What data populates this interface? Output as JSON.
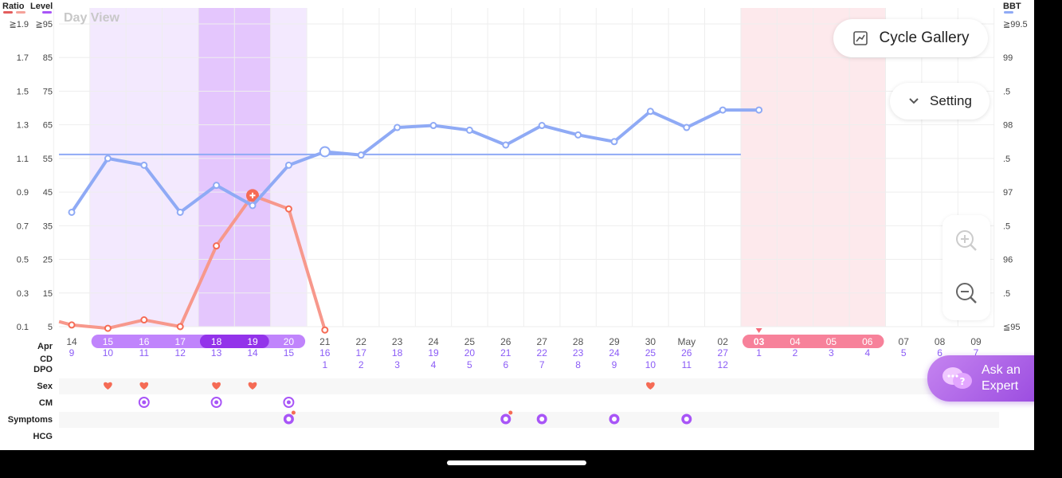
{
  "header": {
    "ratio_label": "Ratio",
    "level_label": "Level",
    "bbt_label": "BBT",
    "view_mode": "Day View",
    "ratio_color": "#e35d5d",
    "ratio_color_2": "#f5a29a",
    "level_color": "#a855f7",
    "bbt_color": "#8faaf5"
  },
  "buttons": {
    "cycle_gallery": "Cycle Gallery",
    "setting": "Setting",
    "ask_expert_line1": "Ask an",
    "ask_expert_line2": "Expert"
  },
  "chart_data": {
    "type": "line",
    "left_ratio_ticks": [
      "≧1.9",
      "1.7",
      "1.5",
      "1.3",
      "1.1",
      "0.9",
      "0.7",
      "0.5",
      "0.3",
      "0.1"
    ],
    "left_level_ticks": [
      "≧95",
      "85",
      "75",
      "65",
      "55",
      "45",
      "35",
      "25",
      "15",
      "5"
    ],
    "right_bbt_ticks": [
      "≧99.5",
      "99",
      ".5",
      "98",
      ".5",
      "97",
      ".5",
      "96",
      ".5",
      "≦95"
    ],
    "month_labels": [
      {
        "index": 0,
        "text": "Apr"
      },
      {
        "index": 17,
        "text": "May"
      }
    ],
    "dates": [
      "14",
      "15",
      "16",
      "17",
      "18",
      "19",
      "20",
      "21",
      "22",
      "23",
      "24",
      "25",
      "26",
      "27",
      "28",
      "29",
      "30",
      "May",
      "02",
      "03",
      "04",
      "05",
      "06",
      "07",
      "08",
      "09"
    ],
    "cycle_day": [
      "9",
      "10",
      "11",
      "12",
      "13",
      "14",
      "15",
      "16",
      "17",
      "18",
      "19",
      "20",
      "21",
      "22",
      "23",
      "24",
      "25",
      "26",
      "27",
      "1",
      "2",
      "3",
      "4",
      "5",
      "6",
      "7"
    ],
    "dpo": [
      "",
      "",
      "",
      "",
      "",
      "",
      "",
      "1",
      "2",
      "3",
      "4",
      "5",
      "6",
      "7",
      "8",
      "9",
      "10",
      "11",
      "12",
      "",
      "",
      "",
      "",
      "",
      "",
      ""
    ],
    "fertile_window": {
      "start_index": 1,
      "end_index": 6
    },
    "peak_window": {
      "start_index": 4,
      "end_index": 5
    },
    "period_window": {
      "start_index": 19,
      "end_index": 22
    },
    "today_index": 19,
    "bbt": {
      "name": "BBT",
      "values": [
        96.7,
        97.5,
        97.4,
        96.7,
        97.1,
        96.8,
        97.4,
        97.6,
        97.55,
        97.96,
        97.99,
        97.92,
        97.7,
        97.99,
        97.85,
        97.75,
        98.2,
        97.96,
        98.22,
        98.22,
        null,
        null,
        null,
        null,
        null,
        null
      ],
      "coverline": 97.56,
      "range": [
        95,
        99.5
      ]
    },
    "lh_level": {
      "values": [
        6.5,
        5.5,
        4.5,
        7,
        5,
        29,
        44,
        40,
        4,
        null,
        null,
        null,
        null,
        null,
        null,
        null,
        null,
        null,
        null,
        null,
        null,
        null,
        null,
        null,
        null,
        null
      ],
      "x_offset_index": [
        -0.35,
        0,
        1,
        2,
        3,
        4,
        5,
        6,
        7
      ],
      "range": [
        5,
        95
      ],
      "peak_index": 5
    },
    "rows": {
      "sex_label": "Sex",
      "sex_days": [
        1,
        2,
        4,
        5,
        16
      ],
      "cm_label": "CM",
      "cm_days": [
        2,
        4,
        6
      ],
      "symptoms_label": "Symptoms",
      "symptoms_days": [
        6,
        12,
        13,
        15,
        17
      ],
      "hcg_label": "HCG",
      "apr_label": "Apr",
      "cd_label": "CD",
      "dpo_label": "DPO"
    }
  },
  "icons": {
    "gallery": "chart-trend-icon",
    "setting": "chevron-down-icon",
    "zoom_in": "zoom-in-icon",
    "zoom_out": "zoom-out-icon",
    "ask": "chat-bubbles-icon",
    "sex": "heart-icon",
    "cm": "cervical-mucus-icon",
    "symptom": "symptom-icon"
  }
}
